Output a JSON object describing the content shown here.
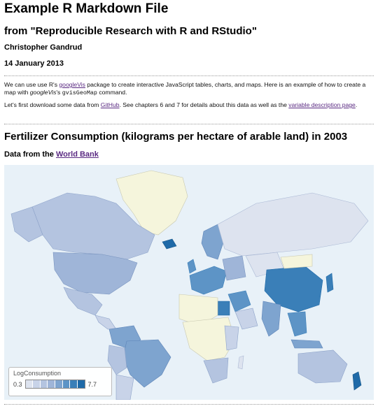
{
  "document": {
    "title": "Example R Markdown File",
    "subtitle": "from \"Reproducible Research with R and RStudio\"",
    "author": "Christopher Gandrud",
    "date": "14 January 2013"
  },
  "intro": {
    "p1_a": "We can use use R's ",
    "p1_link": "googleVis",
    "p1_b": " package to create interactive JavaScript tables, charts, and maps. Here is an example of how to create a map with ",
    "p1_em": "googleVis",
    "p1_c": "'s ",
    "p1_code": "gvisGeoMap",
    "p1_d": " command.",
    "p2_a": "Let's first download some data from ",
    "p2_link1": "GitHub",
    "p2_b": ". See chapters 6 and 7 for details about this data as well as the ",
    "p2_link2": "variable description page",
    "p2_c": "."
  },
  "section": {
    "title": "Fertilizer Consumption (kilograms per hectare of arable land) in 2003",
    "source_prefix": "Data from the ",
    "source_link": "World Bank"
  },
  "map": {
    "background_color": "#e8f1f8",
    "land_color": "#f5f5dc",
    "legend": {
      "title": "LogConsumption",
      "min_label": "0.3",
      "max_label": "7.7",
      "colors": [
        "#dde3ef",
        "#c8d3e8",
        "#b4c4e0",
        "#9fb5d8",
        "#7ea4cf",
        "#5d94c6",
        "#3a7fb8",
        "#1f6aa8"
      ]
    }
  }
}
